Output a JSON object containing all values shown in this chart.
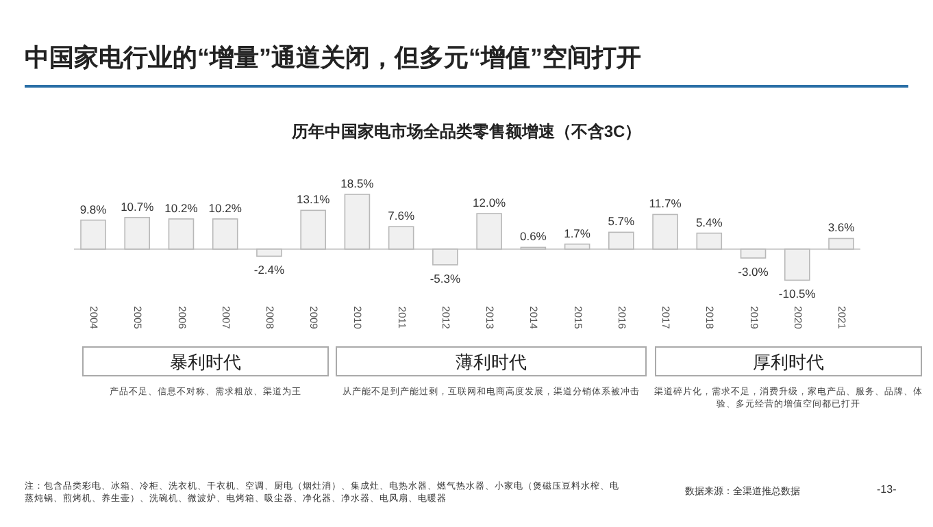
{
  "chart_data": {
    "type": "bar",
    "title": "中国家电行业的“增量”通道关闭，但多元“增值”空间打开",
    "subtitle": "历年中国家电市场全品类零售额增速（不含3C）",
    "categories": [
      "2004",
      "2005",
      "2006",
      "2007",
      "2008",
      "2009",
      "2010",
      "2011",
      "2012",
      "2013",
      "2014",
      "2015",
      "2016",
      "2017",
      "2018",
      "2019",
      "2020",
      "2021"
    ],
    "values": [
      9.8,
      10.7,
      10.2,
      10.2,
      -2.4,
      13.1,
      18.5,
      7.6,
      -5.3,
      12.0,
      0.6,
      1.7,
      5.7,
      11.7,
      5.4,
      -3.0,
      -10.5,
      3.6
    ],
    "value_labels": [
      "9.8%",
      "10.7%",
      "10.2%",
      "10.2%",
      "-2.4%",
      "13.1%",
      "18.5%",
      "7.6%",
      "-5.3%",
      "12.0%",
      "0.6%",
      "1.7%",
      "5.7%",
      "11.7%",
      "5.4%",
      "-3.0%",
      "-10.5%",
      "3.6%"
    ],
    "color": "#f0f0f0",
    "annotations": [
      "暴利时代",
      "薄利时代",
      "厚利时代",
      "产品不足、信息不对称、需求粗放、渠道为王",
      "从产能不足到产能过剩，互联网和电商高度发展，渠道分销体系被冲击",
      "渠道碎片化，需求不足，消费升级，家电产品、服务、品牌、体验、多元经营的增值空间都已打开",
      "注：包含品类彩电、冰箱、冷柜、洗衣机、干衣机、空调、厨电（烟灶消）、集成灶、电热水器、燃气热水器、小家电（煲磁压豆料水榨、电蒸炖锅、煎烤机、养生壶）、洗碗机、微波炉、电烤箱、吸尘器、净化器、净水器、电风扇、电暖器",
      "数据来源：全渠道推总数据",
      "-13-"
    ]
  }
}
